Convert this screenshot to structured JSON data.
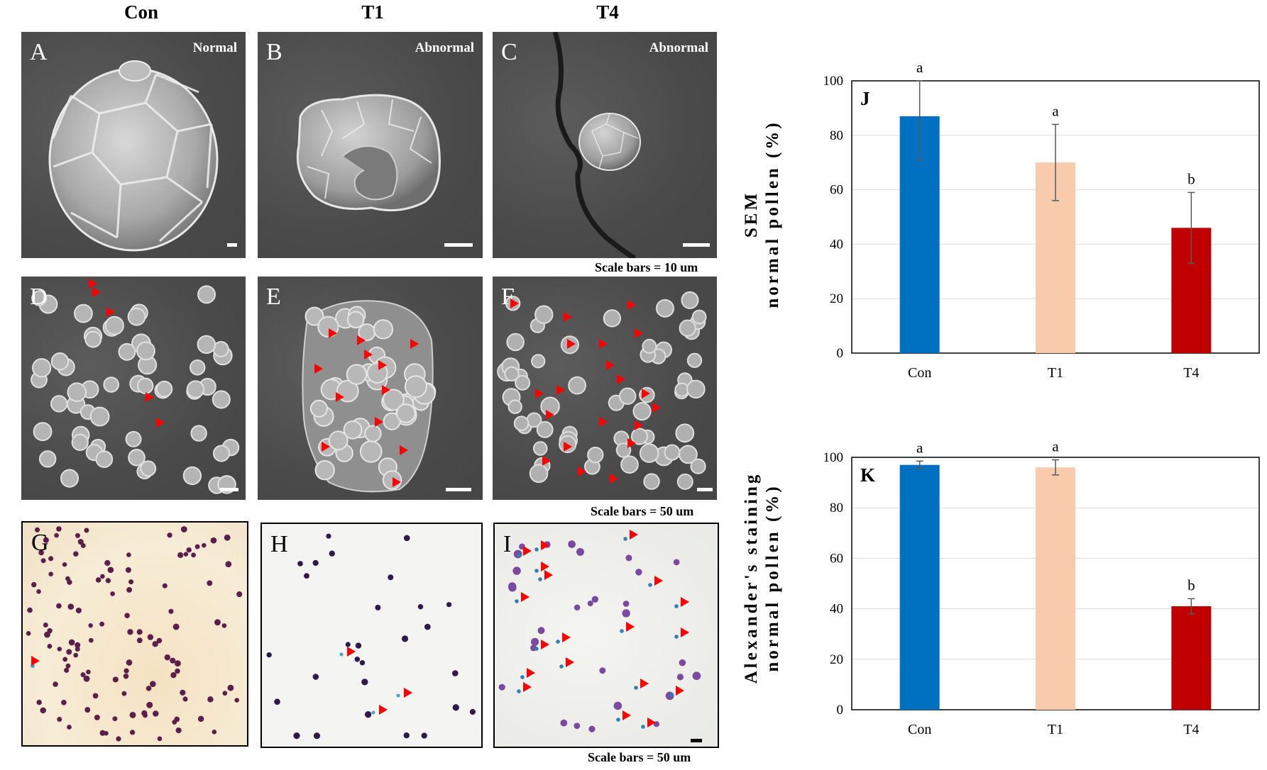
{
  "columns": [
    "Con",
    "T1",
    "T4"
  ],
  "panels": {
    "A": {
      "letter": "A",
      "status": "Normal"
    },
    "B": {
      "letter": "B",
      "status": "Abnormal"
    },
    "C": {
      "letter": "C",
      "status": "Abnormal"
    },
    "D": {
      "letter": "D"
    },
    "E": {
      "letter": "E"
    },
    "F": {
      "letter": "F"
    },
    "G": {
      "letter": "G"
    },
    "H": {
      "letter": "H"
    },
    "I": {
      "letter": "I"
    }
  },
  "scale_notes": {
    "row1": "Scale bars = 10 um",
    "row2": "Scale bars = 50 um",
    "row3": "Scale bars = 50 um"
  },
  "colors": {
    "con": "#0070c0",
    "t1": "#f8cbad",
    "t4": "#c00000",
    "arrow": "#ff0000"
  },
  "chart_data": [
    {
      "type": "bar",
      "panel_label": "J",
      "categories": [
        "Con",
        "T1",
        "T4"
      ],
      "values": [
        87,
        70,
        46
      ],
      "errors": [
        16,
        14,
        13
      ],
      "letters": [
        "a",
        "a",
        "b"
      ],
      "ylabel_line1": "SEM",
      "ylabel_line2": "normal pollen (%)",
      "ylim": [
        0,
        100
      ],
      "yticks": [
        0,
        20,
        40,
        60,
        80,
        100
      ],
      "grid": true
    },
    {
      "type": "bar",
      "panel_label": "K",
      "categories": [
        "Con",
        "T1",
        "T4"
      ],
      "values": [
        97,
        96,
        41
      ],
      "errors": [
        1.5,
        3,
        3
      ],
      "letters": [
        "a",
        "a",
        "b"
      ],
      "ylabel_line1": "Alexander's staining",
      "ylabel_line2": "normal pollen (%)",
      "ylim": [
        0,
        100
      ],
      "yticks": [
        0,
        20,
        40,
        60,
        80,
        100
      ],
      "grid": true
    }
  ]
}
